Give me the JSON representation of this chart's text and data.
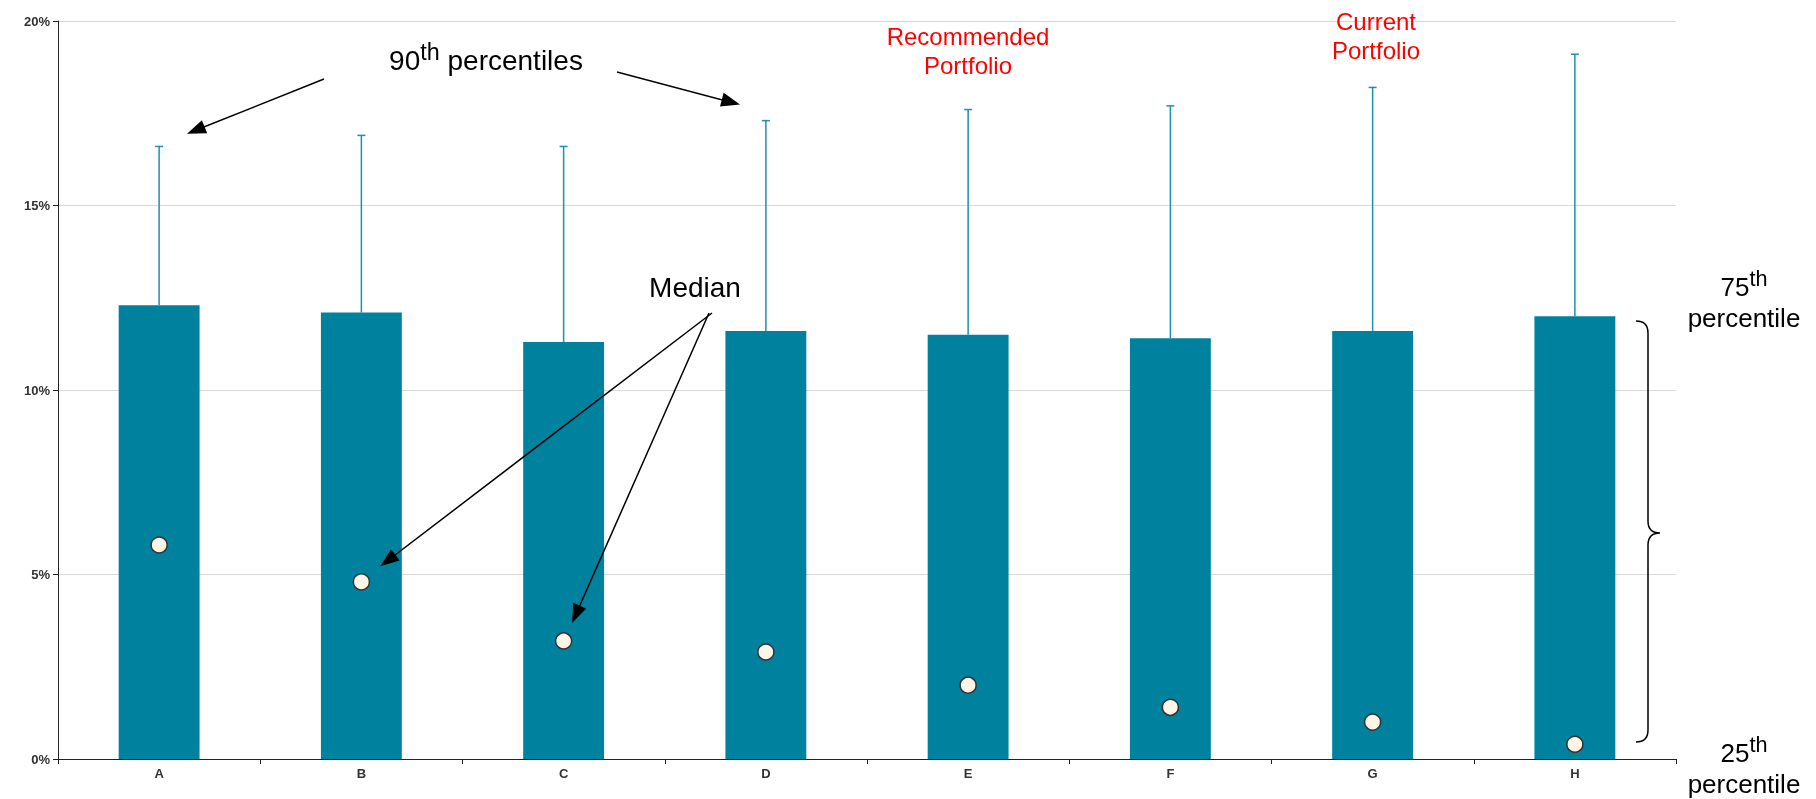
{
  "chart_data": {
    "type": "box",
    "categories": [
      "A",
      "B",
      "C",
      "D",
      "E",
      "F",
      "G",
      "H"
    ],
    "color": "#00829f",
    "boxes": [
      {
        "low": 0,
        "q1": 0,
        "median": 5.8,
        "q3": 12.3,
        "high": 16.6
      },
      {
        "low": 0,
        "q1": 0,
        "median": 4.8,
        "q3": 12.1,
        "high": 16.9
      },
      {
        "low": 0,
        "q1": 0,
        "median": 3.2,
        "q3": 11.3,
        "high": 16.6
      },
      {
        "low": 0,
        "q1": 0,
        "median": 2.9,
        "q3": 11.6,
        "high": 17.3
      },
      {
        "low": 0,
        "q1": 0,
        "median": 2.0,
        "q3": 11.5,
        "high": 17.6
      },
      {
        "low": 0,
        "q1": 0,
        "median": 1.4,
        "q3": 11.4,
        "high": 17.7
      },
      {
        "low": 0,
        "q1": 0,
        "median": 1.0,
        "q3": 11.6,
        "high": 18.2
      },
      {
        "low": 0,
        "q1": 0,
        "median": 0.4,
        "q3": 12.0,
        "high": 19.1
      }
    ],
    "ylim": [
      0,
      20
    ],
    "yticks": [
      {
        "value": 0,
        "label": "0%"
      },
      {
        "value": 5,
        "label": "5%"
      },
      {
        "value": 10,
        "label": "10%"
      },
      {
        "value": 15,
        "label": "15%"
      },
      {
        "value": 20,
        "label": "20%"
      }
    ],
    "grid": "y",
    "annotations": [
      "90$^{th}$ percentiles",
      "Median",
      "Recommended Portfolio",
      "Current Portfolio",
      "75$^{th}$ percentile",
      "25$^{th}$ percentile"
    ]
  }
}
